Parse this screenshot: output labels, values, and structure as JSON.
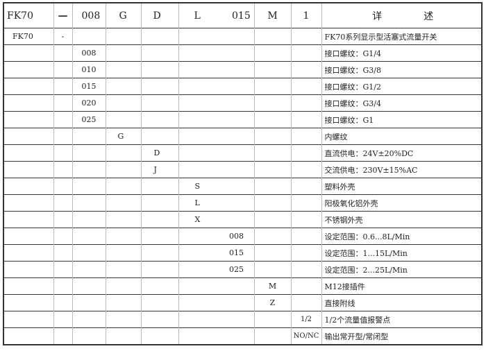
{
  "header": {
    "codes": [
      "FK70",
      "—",
      "008",
      "G",
      "D",
      "L",
      "015",
      "M",
      "1"
    ],
    "detail_label_left": "详",
    "detail_label_right": "述"
  },
  "rows": [
    {
      "cells": [
        "FK70",
        "-",
        "",
        "",
        "",
        "",
        "",
        "",
        ""
      ],
      "desc": "FK70系列显示型活塞式流量开关"
    },
    {
      "cells": [
        "",
        "",
        "008",
        "",
        "",
        "",
        "",
        "",
        ""
      ],
      "desc": "接口螺纹：G1/4"
    },
    {
      "cells": [
        "",
        "",
        "010",
        "",
        "",
        "",
        "",
        "",
        ""
      ],
      "desc": "接口螺纹：G3/8"
    },
    {
      "cells": [
        "",
        "",
        "015",
        "",
        "",
        "",
        "",
        "",
        ""
      ],
      "desc": "接口螺纹：G1/2"
    },
    {
      "cells": [
        "",
        "",
        "020",
        "",
        "",
        "",
        "",
        "",
        ""
      ],
      "desc": "接口螺纹：G3/4"
    },
    {
      "cells": [
        "",
        "",
        "025",
        "",
        "",
        "",
        "",
        "",
        ""
      ],
      "desc": "接口螺纹：G1"
    },
    {
      "cells": [
        "",
        "",
        "",
        "G",
        "",
        "",
        "",
        "",
        ""
      ],
      "desc": "内螺纹"
    },
    {
      "cells": [
        "",
        "",
        "",
        "",
        "D",
        "",
        "",
        "",
        ""
      ],
      "desc": "直流供电：24V±20%DC"
    },
    {
      "cells": [
        "",
        "",
        "",
        "",
        "J",
        "",
        "",
        "",
        ""
      ],
      "desc": "交流供电：230V±15%AC"
    },
    {
      "cells": [
        "",
        "",
        "",
        "",
        "",
        "S",
        "",
        "",
        ""
      ],
      "desc": "塑料外壳"
    },
    {
      "cells": [
        "",
        "",
        "",
        "",
        "",
        "L",
        "",
        "",
        ""
      ],
      "desc": "阳极氧化铝外壳"
    },
    {
      "cells": [
        "",
        "",
        "",
        "",
        "",
        "X",
        "",
        "",
        ""
      ],
      "desc": "不锈钢外壳"
    },
    {
      "cells": [
        "",
        "",
        "",
        "",
        "",
        "",
        "008",
        "",
        ""
      ],
      "desc": "设定范围：0.6...8L/Min"
    },
    {
      "cells": [
        "",
        "",
        "",
        "",
        "",
        "",
        "015",
        "",
        ""
      ],
      "desc": "设定范围：1...15L/Min"
    },
    {
      "cells": [
        "",
        "",
        "",
        "",
        "",
        "",
        "025",
        "",
        ""
      ],
      "desc": "设定范围：2...25L/Min"
    },
    {
      "cells": [
        "",
        "",
        "",
        "",
        "",
        "",
        "",
        "M",
        ""
      ],
      "desc": "M12接插件"
    },
    {
      "cells": [
        "",
        "",
        "",
        "",
        "",
        "",
        "",
        "Z",
        ""
      ],
      "desc": "直接附线"
    },
    {
      "cells": [
        "",
        "",
        "",
        "",
        "",
        "",
        "",
        "",
        "1/2"
      ],
      "desc": "1/2个流量值报警点"
    },
    {
      "cells": [
        "",
        "",
        "",
        "",
        "",
        "",
        "",
        "",
        "NO/NC"
      ],
      "desc": "输出常开型/常闭型"
    }
  ]
}
